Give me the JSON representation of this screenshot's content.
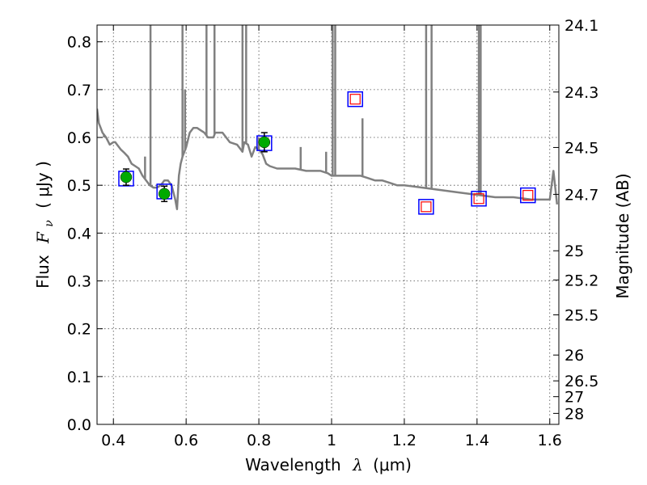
{
  "chart_data": {
    "type": "line",
    "xlabel_prefix": "Wavelength",
    "xlabel_symbol": "λ",
    "xlabel_unit": "(μm)",
    "ylabel_prefix": "Flux",
    "ylabel_symbol": "F",
    "ylabel_sub": "ν",
    "ylabel_unit": "( μJy )",
    "y2label": "Magnitude (AB)",
    "xlim": [
      0.355,
      1.625
    ],
    "ylim": [
      0.0,
      0.835
    ],
    "grid": true,
    "xticks": [
      0.4,
      0.6,
      0.8,
      1.0,
      1.2,
      1.4,
      1.6
    ],
    "xtick_labels": [
      "0.4",
      "0.6",
      "0.8",
      "1",
      "1.2",
      "1.4",
      "1.6"
    ],
    "yticks": [
      0.0,
      0.1,
      0.2,
      0.3,
      0.4,
      0.5,
      0.6,
      0.7,
      0.8
    ],
    "ytick_labels": [
      "0.0",
      "0.1",
      "0.2",
      "0.3",
      "0.4",
      "0.5",
      "0.6",
      "0.7",
      "0.8"
    ],
    "y2ticks": [
      {
        "label": "24.1",
        "flux": 0.835
      },
      {
        "label": "24.3",
        "flux": 0.695
      },
      {
        "label": "24.5",
        "flux": 0.579
      },
      {
        "label": "24.7",
        "flux": 0.481
      },
      {
        "label": "25",
        "flux": 0.363
      },
      {
        "label": "25.2",
        "flux": 0.302
      },
      {
        "label": "25.5",
        "flux": 0.229
      },
      {
        "label": "26",
        "flux": 0.145
      },
      {
        "label": "26.5",
        "flux": 0.091
      },
      {
        "label": "27",
        "flux": 0.058
      },
      {
        "label": "28",
        "flux": 0.023
      }
    ],
    "series": [
      {
        "kind": "model_spectrum",
        "color": "#808080",
        "x": [
          0.355,
          0.36,
          0.365,
          0.37,
          0.38,
          0.39,
          0.4,
          0.405,
          0.41,
          0.415,
          0.42,
          0.43,
          0.44,
          0.45,
          0.46,
          0.47,
          0.48,
          0.49,
          0.5,
          0.51,
          0.52,
          0.53,
          0.54,
          0.55,
          0.56,
          0.57,
          0.575,
          0.58,
          0.585,
          0.59,
          0.6,
          0.61,
          0.62,
          0.63,
          0.64,
          0.65,
          0.66,
          0.67,
          0.675,
          0.68,
          0.69,
          0.7,
          0.72,
          0.74,
          0.75,
          0.755,
          0.76,
          0.77,
          0.78,
          0.79,
          0.8,
          0.81,
          0.82,
          0.83,
          0.85,
          0.87,
          0.9,
          0.93,
          0.95,
          0.97,
          0.99,
          1.0,
          1.01,
          1.03,
          1.06,
          1.08,
          1.1,
          1.12,
          1.14,
          1.16,
          1.18,
          1.2,
          1.25,
          1.3,
          1.35,
          1.4,
          1.45,
          1.5,
          1.55,
          1.58,
          1.6,
          1.61,
          1.62
        ],
        "y": [
          0.66,
          0.63,
          0.62,
          0.61,
          0.6,
          0.585,
          0.59,
          0.59,
          0.585,
          0.58,
          0.575,
          0.568,
          0.56,
          0.545,
          0.54,
          0.535,
          0.52,
          0.51,
          0.5,
          0.495,
          0.495,
          0.5,
          0.51,
          0.51,
          0.5,
          0.47,
          0.45,
          0.52,
          0.545,
          0.56,
          0.58,
          0.61,
          0.62,
          0.62,
          0.615,
          0.61,
          0.6,
          0.6,
          0.6,
          0.61,
          0.61,
          0.61,
          0.59,
          0.585,
          0.575,
          0.57,
          0.59,
          0.585,
          0.56,
          0.58,
          0.575,
          0.565,
          0.545,
          0.54,
          0.535,
          0.535,
          0.535,
          0.53,
          0.53,
          0.53,
          0.525,
          0.52,
          0.52,
          0.52,
          0.52,
          0.52,
          0.515,
          0.51,
          0.51,
          0.505,
          0.5,
          0.5,
          0.495,
          0.49,
          0.485,
          0.48,
          0.475,
          0.475,
          0.47,
          0.47,
          0.47,
          0.53,
          0.46
        ]
      },
      {
        "kind": "emission_lines",
        "color": "#808080",
        "lines": [
          {
            "x": 0.374,
            "top": 0.6
          },
          {
            "x": 0.487,
            "top": 0.56
          },
          {
            "x": 0.502,
            "top": 0.9
          },
          {
            "x": 0.59,
            "top": 0.9
          },
          {
            "x": 0.597,
            "top": 0.7
          },
          {
            "x": 0.656,
            "top": 0.9
          },
          {
            "x": 0.678,
            "top": 0.9
          },
          {
            "x": 0.755,
            "top": 0.9
          },
          {
            "x": 0.765,
            "top": 0.9
          },
          {
            "x": 0.8,
            "top": 0.6
          },
          {
            "x": 0.915,
            "top": 0.58
          },
          {
            "x": 0.985,
            "top": 0.57
          },
          {
            "x": 1.003,
            "top": 0.9
          },
          {
            "x": 1.01,
            "top": 0.9
          },
          {
            "x": 1.085,
            "top": 0.64
          },
          {
            "x": 1.26,
            "top": 0.9
          },
          {
            "x": 1.275,
            "top": 0.9
          },
          {
            "x": 1.405,
            "top": 0.9
          },
          {
            "x": 1.41,
            "top": 0.9
          }
        ]
      },
      {
        "kind": "model_photometry",
        "marker": "square",
        "color": "#0000ff",
        "x": [
          0.435,
          0.54,
          0.815,
          1.065,
          1.26,
          1.405,
          1.54
        ],
        "y": [
          0.514,
          0.487,
          0.588,
          0.68,
          0.455,
          0.472,
          0.479
        ]
      },
      {
        "kind": "observed_detections",
        "marker": "circle",
        "color": "#00aa00",
        "x": [
          0.435,
          0.54,
          0.815
        ],
        "y": [
          0.517,
          0.482,
          0.59
        ],
        "yerr": [
          0.017,
          0.016,
          0.02
        ]
      },
      {
        "kind": "observed_other",
        "marker": "square",
        "color": "#ff0000",
        "x": [
          1.065,
          1.26,
          1.405,
          1.54
        ],
        "y": [
          0.68,
          0.455,
          0.472,
          0.479
        ]
      }
    ]
  }
}
